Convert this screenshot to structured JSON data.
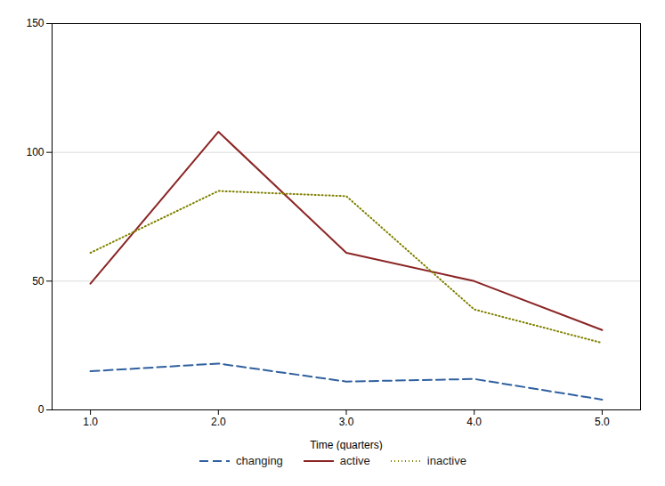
{
  "chart_data": {
    "type": "line",
    "xlabel": "Time (quarters)",
    "x": [
      1,
      2,
      3,
      4,
      5
    ],
    "series": [
      {
        "name": "changing",
        "color": "#3060a0",
        "line_style": "dashed",
        "values": [
          15,
          18,
          11,
          12,
          4
        ]
      },
      {
        "name": "active",
        "color": "#8b2525",
        "line_style": "solid",
        "values": [
          49,
          108,
          61,
          50,
          31
        ]
      },
      {
        "name": "inactive",
        "color": "#808000",
        "line_style": "dotted",
        "values": [
          61,
          85,
          83,
          39,
          26
        ]
      }
    ],
    "xlim": [
      0.7,
      5.3
    ],
    "ylim": [
      0,
      150
    ],
    "xticks": [
      1,
      2,
      3,
      4,
      5
    ],
    "yticks": [
      0,
      50,
      100,
      150
    ],
    "grid": "y",
    "legend": "bottom"
  }
}
